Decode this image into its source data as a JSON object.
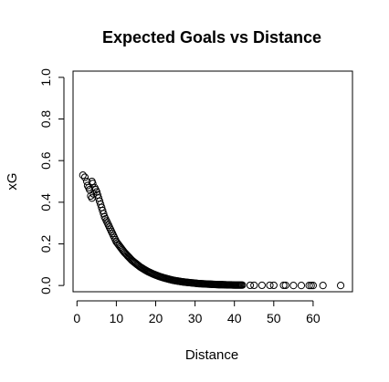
{
  "chart_data": {
    "type": "scatter",
    "title": "Expected Goals vs Distance",
    "xlabel": "Distance",
    "ylabel": "xG",
    "xlim": [
      -1,
      70
    ],
    "ylim": [
      -0.03,
      1.03
    ],
    "x_ticks": [
      0,
      10,
      20,
      30,
      40,
      50,
      60
    ],
    "y_ticks": [
      0.0,
      0.2,
      0.4,
      0.6,
      0.8,
      1.0
    ],
    "y_tick_labels": [
      "0.0",
      "0.2",
      "0.4",
      "0.6",
      "0.8",
      "1.0"
    ],
    "x_tick_labels": [
      "0",
      "10",
      "20",
      "30",
      "40",
      "50",
      "60"
    ],
    "marker": "open-circle",
    "grid": false,
    "legend": "none",
    "series": [
      {
        "points": [
          [
            1.5,
            0.53
          ],
          [
            2.0,
            0.52
          ],
          [
            2.5,
            0.5
          ],
          [
            2.7,
            0.48
          ],
          [
            3.0,
            0.47
          ],
          [
            3.2,
            0.46
          ],
          [
            3.5,
            0.43
          ],
          [
            3.8,
            0.42
          ],
          [
            3.8,
            0.5
          ],
          [
            4.0,
            0.49
          ],
          [
            4.2,
            0.44
          ],
          [
            4.5,
            0.47
          ],
          [
            5.0,
            0.45
          ],
          [
            5.5,
            0.42
          ],
          [
            6.0,
            0.39
          ],
          [
            6.5,
            0.36
          ],
          [
            7.0,
            0.33
          ],
          [
            7.5,
            0.31
          ],
          [
            8.0,
            0.29
          ],
          [
            8.5,
            0.27
          ],
          [
            9.0,
            0.25
          ],
          [
            9.5,
            0.23
          ],
          [
            10.0,
            0.21
          ],
          [
            11.0,
            0.185
          ],
          [
            12.0,
            0.16
          ],
          [
            13.0,
            0.14
          ],
          [
            14.0,
            0.12
          ],
          [
            15.0,
            0.105
          ],
          [
            16.0,
            0.09
          ],
          [
            17.0,
            0.078
          ],
          [
            18.0,
            0.067
          ],
          [
            19.0,
            0.058
          ],
          [
            20.0,
            0.05
          ],
          [
            21.0,
            0.043
          ],
          [
            22.0,
            0.037
          ],
          [
            23.0,
            0.032
          ],
          [
            24.0,
            0.027
          ],
          [
            25.0,
            0.023
          ],
          [
            26.0,
            0.02
          ],
          [
            27.0,
            0.017
          ],
          [
            28.0,
            0.015
          ],
          [
            29.0,
            0.013
          ],
          [
            30.0,
            0.011
          ],
          [
            31.0,
            0.009
          ],
          [
            32.0,
            0.008
          ],
          [
            33.0,
            0.007
          ],
          [
            34.0,
            0.006
          ],
          [
            35.0,
            0.005
          ],
          [
            36.0,
            0.004
          ],
          [
            37.0,
            0.004
          ],
          [
            38.0,
            0.003
          ],
          [
            39.0,
            0.003
          ],
          [
            40.0,
            0.002
          ],
          [
            41.0,
            0.002
          ],
          [
            42.0,
            0.002
          ],
          [
            44.0,
            0.001
          ],
          [
            45.0,
            0.001
          ],
          [
            47.0,
            0.001
          ],
          [
            49.0,
            0.001
          ],
          [
            50.0,
            0.001
          ],
          [
            52.5,
            0.001
          ],
          [
            53.0,
            0.001
          ],
          [
            55.0,
            0.0
          ],
          [
            57.0,
            0.0
          ],
          [
            59.0,
            0.0
          ],
          [
            59.5,
            0.0
          ],
          [
            60.0,
            0.0
          ],
          [
            62.5,
            0.0
          ],
          [
            67.0,
            0.0
          ]
        ]
      }
    ]
  }
}
